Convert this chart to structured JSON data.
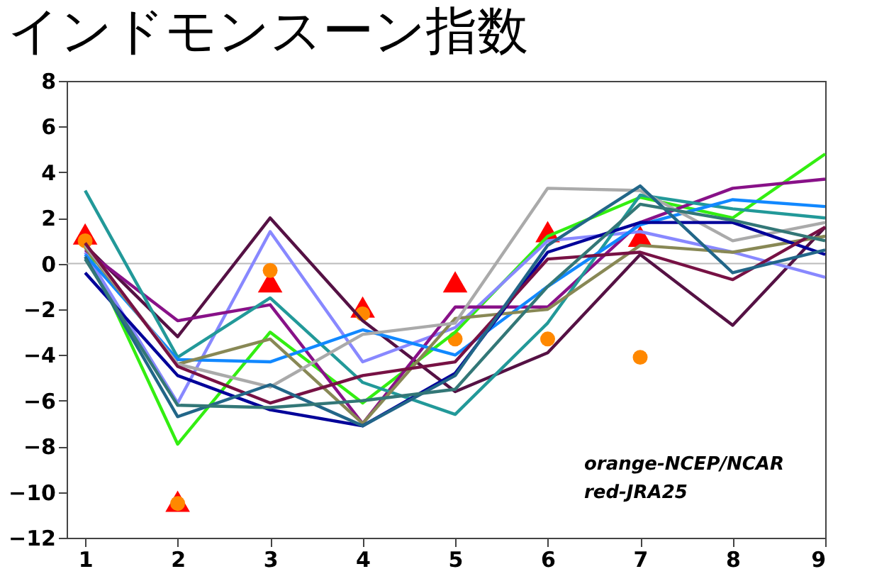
{
  "chart_data": {
    "type": "line",
    "title": "インドモンスーン指数",
    "x": [
      1,
      2,
      3,
      4,
      5,
      6,
      7,
      8,
      9
    ],
    "xlim": [
      0.8,
      9
    ],
    "xticks": [
      1,
      2,
      3,
      4,
      5,
      6,
      7,
      8,
      9
    ],
    "ylim": [
      -12,
      8
    ],
    "yticks": [
      -12,
      -10,
      -8,
      -6,
      -4,
      -2,
      0,
      2,
      4,
      6,
      8
    ],
    "grid": false,
    "line_style": "solid",
    "ref_lines": [
      {
        "axis": "y",
        "value": 0,
        "color": "#bbbbbb"
      }
    ],
    "annotations": [
      "orange-NCEP/NCAR",
      "red-JRA25"
    ],
    "series": [
      {
        "color": "#33ee11",
        "values": [
          0.8,
          -7.9,
          -3.0,
          -6.1,
          -3.0,
          1.2,
          2.9,
          2.0,
          4.8
        ]
      },
      {
        "color": "#551144",
        "values": [
          0.8,
          -3.2,
          2.0,
          -2.5,
          -5.6,
          -3.9,
          0.4,
          -2.7,
          1.6
        ]
      },
      {
        "color": "#8888ff",
        "values": [
          0.5,
          -6.1,
          1.4,
          -4.3,
          -2.8,
          1.0,
          1.4,
          0.5,
          -0.6
        ]
      },
      {
        "color": "#881188",
        "values": [
          0.6,
          -2.5,
          -1.8,
          -7.0,
          -1.9,
          -1.9,
          1.8,
          3.3,
          3.7
        ]
      },
      {
        "color": "#229999",
        "values": [
          3.2,
          -4.1,
          -1.5,
          -5.2,
          -6.6,
          -2.6,
          3.0,
          2.4,
          2.0
        ]
      },
      {
        "color": "#1188ff",
        "values": [
          0.4,
          -4.2,
          -4.3,
          -2.9,
          -4.0,
          -1.0,
          1.7,
          2.8,
          2.5
        ]
      },
      {
        "color": "#888855",
        "values": [
          0.7,
          -4.4,
          -3.3,
          -7.0,
          -2.4,
          -2.0,
          0.8,
          0.5,
          1.2
        ]
      },
      {
        "color": "#aaaaaa",
        "values": [
          0.8,
          -4.4,
          -5.4,
          -3.1,
          -2.6,
          3.3,
          3.2,
          1.0,
          1.8
        ]
      },
      {
        "color": "#000099",
        "values": [
          -0.4,
          -4.9,
          -6.4,
          -7.1,
          -4.8,
          0.5,
          1.8,
          1.8,
          0.4
        ]
      },
      {
        "color": "#771144",
        "values": [
          0.9,
          -4.5,
          -6.1,
          -4.9,
          -4.3,
          0.2,
          0.5,
          -0.7,
          1.6
        ]
      },
      {
        "color": "#226688",
        "values": [
          0.3,
          -6.7,
          -5.3,
          -7.1,
          -4.9,
          0.8,
          3.4,
          -0.4,
          0.6
        ]
      },
      {
        "color": "#337777",
        "values": [
          0.2,
          -6.2,
          -6.3,
          -6.0,
          -5.5,
          -1.0,
          2.6,
          1.9,
          1.0
        ]
      },
      {
        "type": "scatter",
        "marker": "triangle",
        "color": "#ff0000",
        "x": [
          1,
          2,
          3,
          4,
          5,
          6,
          7
        ],
        "values": [
          1.3,
          -10.4,
          -0.8,
          -1.9,
          -0.8,
          1.4,
          1.2
        ]
      },
      {
        "type": "scatter",
        "marker": "circle",
        "color": "#ff8800",
        "x": [
          1,
          2,
          3,
          4,
          5,
          6,
          7
        ],
        "values": [
          1.0,
          -10.5,
          -0.3,
          -2.2,
          -3.3,
          -3.3,
          -4.1
        ]
      }
    ]
  }
}
